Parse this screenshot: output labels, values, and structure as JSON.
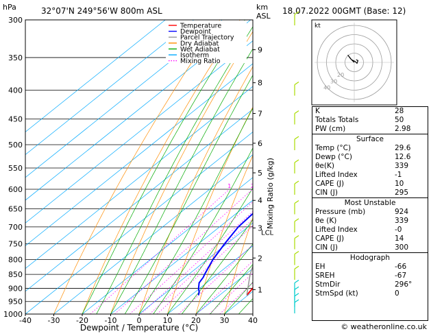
{
  "header": {
    "hpa_label": "hPa",
    "location": "32°07'N  249°56'W  800m  ASL",
    "km_label": "km",
    "asl_label": "ASL",
    "datetime": "18.07.2022  00GMT  (Base: 12)"
  },
  "chart_data": {
    "type": "line",
    "title": "",
    "xlabel": "Dewpoint / Temperature (°C)",
    "ylabel": "",
    "x_ticks": [
      -40,
      -30,
      -20,
      -10,
      0,
      10,
      20,
      30,
      40
    ],
    "xlim": [
      -40,
      40
    ],
    "pressure_levels": [
      300,
      350,
      400,
      450,
      500,
      550,
      600,
      650,
      700,
      750,
      800,
      850,
      900,
      950,
      1000
    ],
    "ylim_hpa": [
      1000,
      300
    ],
    "km_ticks": [
      {
        "label": "1",
        "p": 905
      },
      {
        "label": "2",
        "p": 795
      },
      {
        "label": "3",
        "p": 703
      },
      {
        "label": "4",
        "p": 628
      },
      {
        "label": "5",
        "p": 561
      },
      {
        "label": "6",
        "p": 497
      },
      {
        "label": "7",
        "p": 440
      },
      {
        "label": "8",
        "p": 388
      },
      {
        "label": "9",
        "p": 339
      }
    ],
    "lcl_label": "LCL",
    "lcl_p": 715,
    "mixing_axis_label": "Mixing Ratio (g/kg)",
    "mixing_ratios": [
      1,
      2,
      3,
      4,
      5,
      6,
      10,
      15,
      20,
      25
    ],
    "mixing_label_text": [
      "1",
      "2",
      "3",
      "4",
      "5",
      "6",
      "10",
      "15",
      "20",
      "25"
    ],
    "legend": {
      "placement": "top-left",
      "entries": [
        {
          "label": "Temperature",
          "color": "#ff0000",
          "style": "solid"
        },
        {
          "label": "Dewpoint",
          "color": "#0000ff",
          "style": "solid"
        },
        {
          "label": "Parcel Trajectory",
          "color": "#999999",
          "style": "solid"
        },
        {
          "label": "Dry Adiabat",
          "color": "#ff8c00",
          "style": "solid"
        },
        {
          "label": "Wet Adiabat",
          "color": "#00aa00",
          "style": "solid"
        },
        {
          "label": "Isotherm",
          "color": "#00aaff",
          "style": "solid"
        },
        {
          "label": "Mixing Ratio",
          "color": "#ff00ff",
          "style": "dotted"
        }
      ]
    },
    "series": [
      {
        "name": "Temperature",
        "color": "#ff0000",
        "points": [
          [
            926,
            29.6
          ],
          [
            900,
            28.6
          ],
          [
            870,
            28.6
          ],
          [
            850,
            27.2
          ],
          [
            800,
            23.8
          ],
          [
            750,
            19.8
          ],
          [
            700,
            15.4
          ],
          [
            650,
            10.8
          ],
          [
            600,
            5.6
          ],
          [
            550,
            0.0
          ],
          [
            500,
            -5.6
          ],
          [
            460,
            -10.6
          ],
          [
            430,
            -14.8
          ],
          [
            400,
            -19.6
          ],
          [
            370,
            -24.6
          ],
          [
            340,
            -30.6
          ],
          [
            320,
            -34.0
          ],
          [
            300,
            -39.6
          ]
        ]
      },
      {
        "name": "Dewpoint",
        "color": "#0000ff",
        "points": [
          [
            926,
            12.6
          ],
          [
            915,
            11.6
          ],
          [
            900,
            9.6
          ],
          [
            880,
            7.4
          ],
          [
            860,
            6.4
          ],
          [
            850,
            5.6
          ],
          [
            800,
            2.0
          ],
          [
            750,
            -0.8
          ],
          [
            700,
            -3.4
          ],
          [
            650,
            -4.4
          ],
          [
            600,
            -6.4
          ],
          [
            580,
            -7.4
          ],
          [
            560,
            -9.4
          ],
          [
            540,
            -11.4
          ],
          [
            510,
            -12.6
          ],
          [
            490,
            -16.0
          ],
          [
            480,
            -18.2
          ],
          [
            470,
            -22.0
          ],
          [
            450,
            -24.0
          ],
          [
            430,
            -26.0
          ],
          [
            400,
            -28.6
          ],
          [
            380,
            -31.0
          ],
          [
            360,
            -34.0
          ],
          [
            340,
            -36.0
          ],
          [
            320,
            -38.6
          ],
          [
            300,
            -43.0
          ]
        ]
      },
      {
        "name": "Parcel Trajectory",
        "color": "#999999",
        "points": [
          [
            926,
            29.6
          ],
          [
            850,
            21.6
          ],
          [
            800,
            16.8
          ],
          [
            750,
            12.0
          ],
          [
            715,
            8.6
          ],
          [
            700,
            7.8
          ],
          [
            650,
            4.4
          ],
          [
            600,
            0.6
          ],
          [
            550,
            -3.8
          ],
          [
            500,
            -8.6
          ],
          [
            450,
            -14.0
          ],
          [
            400,
            -20.4
          ],
          [
            350,
            -28.0
          ],
          [
            300,
            -37.0
          ]
        ]
      }
    ],
    "hodograph": {
      "rings_kt": [
        10,
        20,
        30,
        40
      ],
      "ring_labels": [
        "20",
        "30",
        "40"
      ],
      "unit_label": "kt",
      "trace_kt": [
        [
          0,
          0
        ],
        [
          -2,
          2
        ],
        [
          -4,
          4
        ],
        [
          -7,
          8
        ],
        [
          -3,
          3
        ],
        [
          1,
          1
        ],
        [
          3,
          -1
        ],
        [
          4,
          2
        ],
        [
          2,
          3
        ]
      ]
    },
    "wind_barb_pressures": [
      300,
      400,
      450,
      500,
      550,
      600,
      650,
      700,
      750,
      800,
      850,
      900,
      925,
      950,
      975
    ]
  },
  "indices": {
    "k_label": "K",
    "k_value": "28",
    "tt_label": "Totals Totals",
    "tt_value": "50",
    "pw_label": "PW (cm)",
    "pw_value": "2.98",
    "surface_title": "Surface",
    "s_temp_label": "Temp (°C)",
    "s_temp_value": "29.6",
    "s_dewp_label": "Dewp (°C)",
    "s_dewp_value": "12.6",
    "s_theta_label": "θe(K)",
    "s_theta_value": "339",
    "s_li_label": "Lifted Index",
    "s_li_value": "-1",
    "s_cape_label": "CAPE (J)",
    "s_cape_value": "10",
    "s_cin_label": "CIN (J)",
    "s_cin_value": "295",
    "mu_title": "Most Unstable",
    "mu_p_label": "Pressure (mb)",
    "mu_p_value": "924",
    "mu_theta_label": "θe (K)",
    "mu_theta_value": "339",
    "mu_li_label": "Lifted Index",
    "mu_li_value": "-0",
    "mu_cape_label": "CAPE (J)",
    "mu_cape_value": "14",
    "mu_cin_label": "CIN (J)",
    "mu_cin_value": "300",
    "hodo_title": "Hodograph",
    "eh_label": "EH",
    "eh_value": "-66",
    "sreh_label": "SREH",
    "sreh_value": "-67",
    "stmdir_label": "StmDir",
    "stmdir_value": "296°",
    "stmspd_label": "StmSpd (kt)",
    "stmspd_value": "0"
  },
  "footer": {
    "copyright": "© weatheronline.co.uk"
  },
  "colors": {
    "temperature": "#ff0000",
    "dewpoint": "#0000ff",
    "parcel": "#999999",
    "dry_adiabat": "#ff8c00",
    "wet_adiabat": "#00aa00",
    "isotherm": "#00aaff",
    "mixing_ratio": "#ff00ff",
    "wind_barb": "#aadd00",
    "wind_barb_low": "#00cccc"
  }
}
